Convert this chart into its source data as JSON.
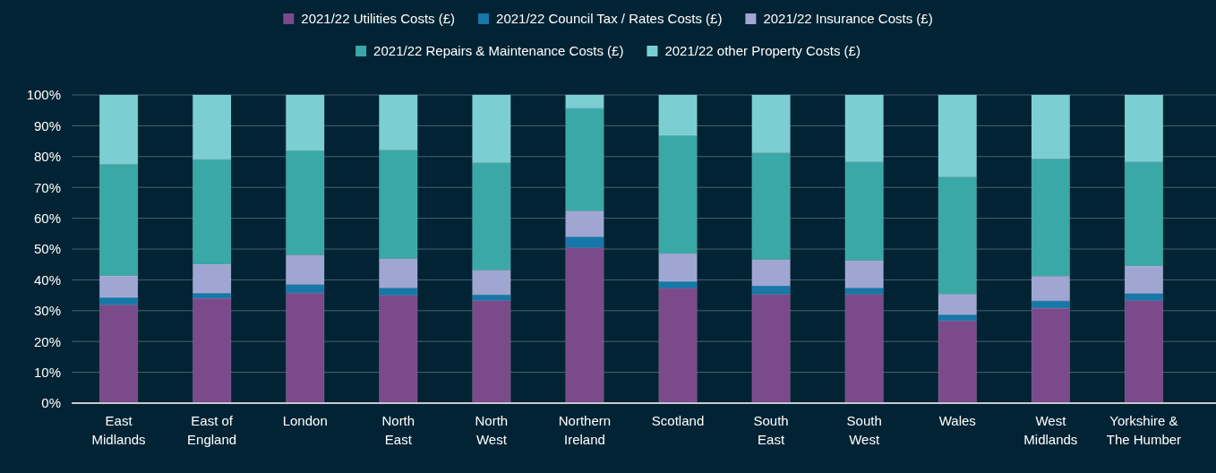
{
  "chart_data": {
    "type": "bar",
    "stacked": true,
    "legend": "top",
    "grid": "y",
    "categories": [
      [
        "East",
        "Midlands"
      ],
      [
        "East of",
        "England"
      ],
      [
        "London"
      ],
      [
        "North",
        "East"
      ],
      [
        "North",
        "West"
      ],
      [
        "Northern",
        "Ireland"
      ],
      [
        "Scotland"
      ],
      [
        "South",
        "East"
      ],
      [
        "South",
        "West"
      ],
      [
        "Wales"
      ],
      [
        "West",
        "Midlands"
      ],
      [
        "Yorkshire &",
        "The Humber"
      ]
    ],
    "ylim": [
      0,
      100
    ],
    "yticks": [
      {
        "value": 0,
        "label": "0%"
      },
      {
        "value": 10,
        "label": "10%"
      },
      {
        "value": 20,
        "label": "20%"
      },
      {
        "value": 30,
        "label": "30%"
      },
      {
        "value": 40,
        "label": "40%"
      },
      {
        "value": 50,
        "label": "50%"
      },
      {
        "value": 60,
        "label": "60%"
      },
      {
        "value": 70,
        "label": "70%"
      },
      {
        "value": 80,
        "label": "80%"
      },
      {
        "value": 90,
        "label": "90%"
      },
      {
        "value": 100,
        "label": "100%"
      }
    ],
    "series": [
      {
        "name": "2021/22 Utilities Costs (£)",
        "color": "#7b4a8a",
        "values": [
          31.9,
          34.0,
          35.7,
          35.0,
          33.3,
          50.4,
          37.3,
          35.3,
          35.3,
          26.7,
          30.8,
          33.3
        ]
      },
      {
        "name": "2021/22 Council Tax / Rates Costs (£)",
        "color": "#1777a8",
        "values": [
          2.4,
          1.7,
          2.8,
          2.4,
          1.9,
          3.6,
          2.2,
          2.8,
          2.1,
          2.0,
          2.4,
          2.3
        ]
      },
      {
        "name": "2021/22 Insurance Costs (£)",
        "color": "#a0a6d2",
        "values": [
          7.0,
          9.4,
          9.6,
          9.5,
          8.0,
          8.4,
          9.0,
          8.5,
          8.9,
          6.7,
          8.0,
          8.9
        ]
      },
      {
        "name": "2021/22 Repairs & Maintenance Costs (£)",
        "color": "#3aa8a6",
        "values": [
          36.2,
          34.0,
          33.9,
          35.2,
          34.8,
          33.3,
          38.4,
          34.6,
          32.0,
          38.0,
          38.1,
          33.8
        ]
      },
      {
        "name": "2021/22 other Property Costs (£)",
        "color": "#7bcfd2",
        "values": [
          22.5,
          20.9,
          18.0,
          17.9,
          22.0,
          4.3,
          13.1,
          18.8,
          21.7,
          26.6,
          20.7,
          21.7
        ]
      }
    ]
  }
}
